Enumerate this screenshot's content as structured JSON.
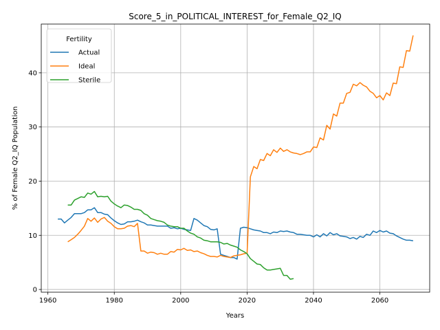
{
  "chart_data": {
    "type": "line",
    "title": "Score_5_in_POLITICAL_INTEREST_for_Female_Q2_IQ",
    "xlabel": "Years",
    "ylabel": "% of Female Q2_IQ Population",
    "xlim": [
      1958,
      2075
    ],
    "ylim": [
      -0.5,
      49
    ],
    "xticks": [
      1960,
      1980,
      2000,
      2020,
      2040,
      2060
    ],
    "yticks": [
      0,
      10,
      20,
      30,
      40
    ],
    "grid": true,
    "legend": {
      "title": "Fertility",
      "position": "top-left"
    },
    "series": [
      {
        "name": "Actual",
        "color": "#1f77b4",
        "points": [
          [
            1963,
            13.0
          ],
          [
            1964,
            13.0
          ],
          [
            1965,
            12.3
          ],
          [
            1966,
            12.8
          ],
          [
            1967,
            13.3
          ],
          [
            1968,
            14.0
          ],
          [
            1969,
            14.0
          ],
          [
            1970,
            14.0
          ],
          [
            1971,
            14.2
          ],
          [
            1972,
            14.7
          ],
          [
            1973,
            14.7
          ],
          [
            1974,
            15.1
          ],
          [
            1975,
            14.2
          ],
          [
            1976,
            14.2
          ],
          [
            1977,
            13.9
          ],
          [
            1978,
            13.8
          ],
          [
            1979,
            13.2
          ],
          [
            1980,
            12.7
          ],
          [
            1981,
            12.3
          ],
          [
            1982,
            12.0
          ],
          [
            1983,
            12.1
          ],
          [
            1984,
            12.5
          ],
          [
            1985,
            12.5
          ],
          [
            1986,
            12.6
          ],
          [
            1987,
            12.8
          ],
          [
            1988,
            12.5
          ],
          [
            1989,
            12.3
          ],
          [
            1990,
            11.9
          ],
          [
            1991,
            11.9
          ],
          [
            1992,
            11.8
          ],
          [
            1993,
            11.7
          ],
          [
            1994,
            11.7
          ],
          [
            1995,
            11.7
          ],
          [
            1996,
            11.7
          ],
          [
            1997,
            11.3
          ],
          [
            1998,
            11.4
          ],
          [
            1999,
            11.2
          ],
          [
            2000,
            11.3
          ],
          [
            2001,
            11.1
          ],
          [
            2002,
            11.0
          ],
          [
            2003,
            10.9
          ],
          [
            2004,
            13.1
          ],
          [
            2005,
            12.8
          ],
          [
            2006,
            12.3
          ],
          [
            2007,
            11.8
          ],
          [
            2008,
            11.6
          ],
          [
            2009,
            11.1
          ],
          [
            2010,
            11.0
          ],
          [
            2011,
            11.2
          ],
          [
            2012,
            6.5
          ],
          [
            2013,
            6.3
          ],
          [
            2014,
            6.1
          ],
          [
            2015,
            5.9
          ],
          [
            2016,
            5.9
          ],
          [
            2017,
            5.6
          ],
          [
            2018,
            11.3
          ],
          [
            2019,
            11.5
          ],
          [
            2020,
            11.4
          ],
          [
            2021,
            11.2
          ],
          [
            2022,
            11.0
          ],
          [
            2023,
            10.9
          ],
          [
            2024,
            10.8
          ],
          [
            2025,
            10.5
          ],
          [
            2026,
            10.5
          ],
          [
            2027,
            10.3
          ],
          [
            2028,
            10.6
          ],
          [
            2029,
            10.5
          ],
          [
            2030,
            10.8
          ],
          [
            2031,
            10.7
          ],
          [
            2032,
            10.8
          ],
          [
            2033,
            10.6
          ],
          [
            2034,
            10.5
          ],
          [
            2035,
            10.2
          ],
          [
            2036,
            10.2
          ],
          [
            2037,
            10.1
          ],
          [
            2038,
            10.0
          ],
          [
            2039,
            10.0
          ],
          [
            2040,
            9.7
          ],
          [
            2041,
            10.1
          ],
          [
            2042,
            9.7
          ],
          [
            2043,
            10.3
          ],
          [
            2044,
            9.9
          ],
          [
            2045,
            10.5
          ],
          [
            2046,
            10.1
          ],
          [
            2047,
            10.3
          ],
          [
            2048,
            9.9
          ],
          [
            2049,
            9.8
          ],
          [
            2050,
            9.7
          ],
          [
            2051,
            9.4
          ],
          [
            2052,
            9.6
          ],
          [
            2053,
            9.3
          ],
          [
            2054,
            9.8
          ],
          [
            2055,
            9.6
          ],
          [
            2056,
            10.2
          ],
          [
            2057,
            10.0
          ],
          [
            2058,
            10.8
          ],
          [
            2059,
            10.5
          ],
          [
            2060,
            10.9
          ],
          [
            2061,
            10.6
          ],
          [
            2062,
            10.8
          ],
          [
            2063,
            10.4
          ],
          [
            2064,
            10.3
          ],
          [
            2065,
            9.9
          ],
          [
            2066,
            9.6
          ],
          [
            2067,
            9.3
          ],
          [
            2068,
            9.1
          ],
          [
            2069,
            9.1
          ],
          [
            2070,
            9.0
          ]
        ]
      },
      {
        "name": "Ideal",
        "color": "#ff7f0e",
        "points": [
          [
            1966,
            8.8
          ],
          [
            1967,
            9.2
          ],
          [
            1968,
            9.6
          ],
          [
            1969,
            10.2
          ],
          [
            1970,
            10.9
          ],
          [
            1971,
            11.7
          ],
          [
            1972,
            13.1
          ],
          [
            1973,
            12.6
          ],
          [
            1974,
            13.2
          ],
          [
            1975,
            12.4
          ],
          [
            1976,
            13.0
          ],
          [
            1977,
            13.3
          ],
          [
            1978,
            12.6
          ],
          [
            1979,
            12.2
          ],
          [
            1980,
            11.6
          ],
          [
            1981,
            11.2
          ],
          [
            1982,
            11.2
          ],
          [
            1983,
            11.3
          ],
          [
            1984,
            11.7
          ],
          [
            1985,
            11.8
          ],
          [
            1986,
            11.6
          ],
          [
            1987,
            12.2
          ],
          [
            1988,
            7.1
          ],
          [
            1989,
            7.1
          ],
          [
            1990,
            6.7
          ],
          [
            1991,
            6.9
          ],
          [
            1992,
            6.8
          ],
          [
            1993,
            6.5
          ],
          [
            1994,
            6.7
          ],
          [
            1995,
            6.5
          ],
          [
            1996,
            6.5
          ],
          [
            1997,
            7.0
          ],
          [
            1998,
            6.9
          ],
          [
            1999,
            7.4
          ],
          [
            2000,
            7.3
          ],
          [
            2001,
            7.6
          ],
          [
            2002,
            7.2
          ],
          [
            2003,
            7.3
          ],
          [
            2004,
            7.0
          ],
          [
            2005,
            7.1
          ],
          [
            2006,
            6.8
          ],
          [
            2007,
            6.6
          ],
          [
            2008,
            6.3
          ],
          [
            2009,
            6.1
          ],
          [
            2010,
            6.1
          ],
          [
            2011,
            6.0
          ],
          [
            2012,
            6.3
          ],
          [
            2013,
            6.1
          ],
          [
            2014,
            6.0
          ],
          [
            2015,
            5.9
          ],
          [
            2016,
            6.2
          ],
          [
            2017,
            6.3
          ],
          [
            2018,
            6.4
          ],
          [
            2019,
            6.6
          ],
          [
            2020,
            6.7
          ],
          [
            2021,
            20.8
          ],
          [
            2022,
            22.7
          ],
          [
            2023,
            22.3
          ],
          [
            2024,
            24.0
          ],
          [
            2025,
            23.8
          ],
          [
            2026,
            25.1
          ],
          [
            2027,
            24.7
          ],
          [
            2028,
            25.8
          ],
          [
            2029,
            25.3
          ],
          [
            2030,
            26.1
          ],
          [
            2031,
            25.5
          ],
          [
            2032,
            25.8
          ],
          [
            2033,
            25.4
          ],
          [
            2034,
            25.2
          ],
          [
            2035,
            25.1
          ],
          [
            2036,
            24.9
          ],
          [
            2037,
            25.1
          ],
          [
            2038,
            25.4
          ],
          [
            2039,
            25.4
          ],
          [
            2040,
            26.3
          ],
          [
            2041,
            26.2
          ],
          [
            2042,
            28.0
          ],
          [
            2043,
            27.6
          ],
          [
            2044,
            30.3
          ],
          [
            2045,
            29.6
          ],
          [
            2046,
            32.4
          ],
          [
            2047,
            32.0
          ],
          [
            2048,
            34.4
          ],
          [
            2049,
            34.4
          ],
          [
            2050,
            36.2
          ],
          [
            2051,
            36.4
          ],
          [
            2052,
            37.9
          ],
          [
            2053,
            37.6
          ],
          [
            2054,
            38.2
          ],
          [
            2055,
            37.7
          ],
          [
            2056,
            37.4
          ],
          [
            2057,
            36.6
          ],
          [
            2058,
            36.2
          ],
          [
            2059,
            35.4
          ],
          [
            2060,
            35.8
          ],
          [
            2061,
            35.0
          ],
          [
            2062,
            36.3
          ],
          [
            2063,
            35.8
          ],
          [
            2064,
            38.1
          ],
          [
            2065,
            38.0
          ],
          [
            2066,
            41.1
          ],
          [
            2067,
            41.0
          ],
          [
            2068,
            44.1
          ],
          [
            2069,
            44.0
          ],
          [
            2070,
            46.9
          ]
        ]
      },
      {
        "name": "Sterile",
        "color": "#2ca02c",
        "points": [
          [
            1966,
            15.6
          ],
          [
            1967,
            15.6
          ],
          [
            1968,
            16.5
          ],
          [
            1969,
            16.8
          ],
          [
            1970,
            17.1
          ],
          [
            1971,
            17.0
          ],
          [
            1972,
            17.8
          ],
          [
            1973,
            17.6
          ],
          [
            1974,
            18.1
          ],
          [
            1975,
            17.1
          ],
          [
            1976,
            17.2
          ],
          [
            1977,
            17.1
          ],
          [
            1978,
            17.2
          ],
          [
            1979,
            16.3
          ],
          [
            1980,
            15.8
          ],
          [
            1981,
            15.4
          ],
          [
            1982,
            15.1
          ],
          [
            1983,
            15.6
          ],
          [
            1984,
            15.5
          ],
          [
            1985,
            15.2
          ],
          [
            1986,
            14.8
          ],
          [
            1987,
            14.8
          ],
          [
            1988,
            14.6
          ],
          [
            1989,
            14.0
          ],
          [
            1990,
            13.7
          ],
          [
            1991,
            13.1
          ],
          [
            1992,
            12.9
          ],
          [
            1993,
            12.7
          ],
          [
            1994,
            12.6
          ],
          [
            1995,
            12.4
          ],
          [
            1996,
            11.9
          ],
          [
            1997,
            11.7
          ],
          [
            1998,
            11.6
          ],
          [
            1999,
            11.6
          ],
          [
            2000,
            11.3
          ],
          [
            2001,
            11.3
          ],
          [
            2002,
            10.8
          ],
          [
            2003,
            10.4
          ],
          [
            2004,
            10.2
          ],
          [
            2005,
            9.7
          ],
          [
            2006,
            9.5
          ],
          [
            2007,
            9.1
          ],
          [
            2008,
            9.0
          ],
          [
            2009,
            8.8
          ],
          [
            2010,
            8.8
          ],
          [
            2011,
            8.8
          ],
          [
            2012,
            8.7
          ],
          [
            2013,
            8.4
          ],
          [
            2014,
            8.5
          ],
          [
            2015,
            8.2
          ],
          [
            2016,
            8.0
          ],
          [
            2017,
            7.8
          ],
          [
            2018,
            7.3
          ],
          [
            2019,
            7.0
          ],
          [
            2020,
            6.6
          ],
          [
            2021,
            5.7
          ],
          [
            2022,
            5.2
          ],
          [
            2023,
            4.7
          ],
          [
            2024,
            4.6
          ],
          [
            2025,
            4.0
          ],
          [
            2026,
            3.6
          ],
          [
            2027,
            3.6
          ],
          [
            2028,
            3.7
          ],
          [
            2029,
            3.8
          ],
          [
            2030,
            3.9
          ],
          [
            2031,
            2.6
          ],
          [
            2032,
            2.6
          ],
          [
            2033,
            1.9
          ],
          [
            2034,
            2.0
          ]
        ]
      }
    ]
  }
}
